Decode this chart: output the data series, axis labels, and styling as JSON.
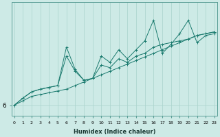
{
  "xlabel": "Humidex (Indice chaleur)",
  "ylabel": "",
  "x": [
    0,
    1,
    2,
    3,
    4,
    5,
    6,
    7,
    8,
    9,
    10,
    11,
    12,
    13,
    14,
    15,
    16,
    17,
    18,
    19,
    20,
    21,
    22,
    23
  ],
  "y_bottom": [
    6.0,
    6.05,
    6.1,
    6.12,
    6.14,
    6.16,
    6.18,
    6.22,
    6.26,
    6.3,
    6.34,
    6.38,
    6.42,
    6.46,
    6.5,
    6.54,
    6.58,
    6.62,
    6.66,
    6.7,
    6.74,
    6.78,
    6.8,
    6.82
  ],
  "y_mid": [
    6.0,
    6.08,
    6.15,
    6.18,
    6.2,
    6.22,
    6.55,
    6.38,
    6.28,
    6.3,
    6.45,
    6.42,
    6.52,
    6.48,
    6.55,
    6.58,
    6.65,
    6.68,
    6.7,
    6.72,
    6.74,
    6.78,
    6.8,
    6.82
  ],
  "y_top": [
    6.0,
    6.08,
    6.15,
    6.18,
    6.2,
    6.22,
    6.65,
    6.4,
    6.28,
    6.3,
    6.55,
    6.48,
    6.62,
    6.52,
    6.62,
    6.72,
    6.95,
    6.58,
    6.68,
    6.8,
    6.95,
    6.7,
    6.78,
    6.8
  ],
  "bg_color": "#cdeae6",
  "line_color": "#1a7a6e",
  "grid_color": "#aed6d0",
  "ytick_label": "6",
  "ytick_value": 6.0,
  "ylim": [
    5.88,
    7.15
  ],
  "xlim": [
    -0.3,
    23.3
  ]
}
